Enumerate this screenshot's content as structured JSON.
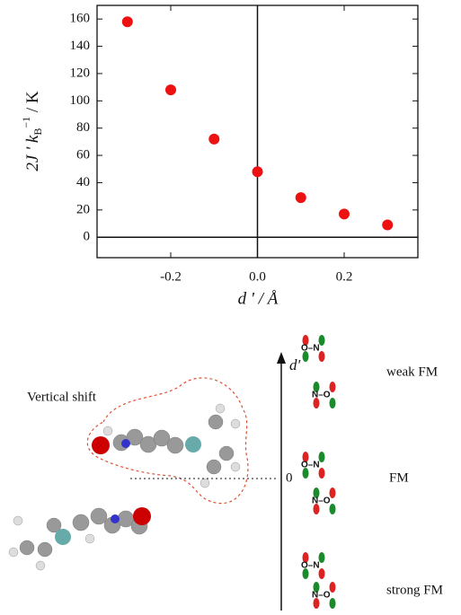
{
  "chart_data": {
    "type": "scatter",
    "x": [
      -0.3,
      -0.2,
      -0.1,
      0.0,
      0.1,
      0.2,
      0.3
    ],
    "values": [
      158,
      108,
      72,
      48,
      29,
      17,
      9
    ],
    "color": "#ee1111",
    "x_label": "d ' / Å",
    "y_label": [
      "2J ' k",
      "B",
      "−1",
      " / K"
    ],
    "xlim": [
      -0.37,
      0.37
    ],
    "ylim": [
      -15,
      170
    ],
    "xticks": [
      -0.2,
      {
        "value": 0,
        "label": "0.0"
      },
      0.2
    ],
    "yticks": [
      0,
      20,
      40,
      60,
      80,
      100,
      120,
      140,
      160
    ]
  },
  "diagram": {
    "shift_label": "Vertical shift",
    "axis_label": "d'",
    "zero_label": "0",
    "states": [
      {
        "label": "weak FM",
        "top": "O–N",
        "bottom": "N–O"
      },
      {
        "label": "FM",
        "top": "O–N",
        "bottom": "N–O"
      },
      {
        "label": "strong FM",
        "top": "O–N",
        "bottom": "N–O"
      }
    ]
  }
}
